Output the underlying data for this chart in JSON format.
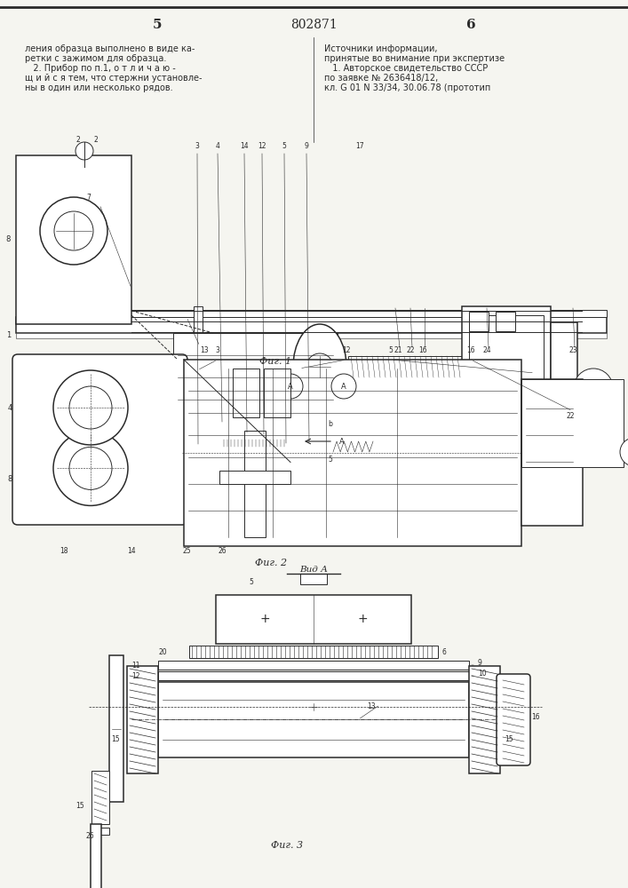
{
  "page_width": 7.07,
  "page_height": 10.0,
  "dpi": 100,
  "bg_color": "#f5f5f0",
  "line_color": "#2a2a2a",
  "header": {
    "left_num": "5",
    "center_num": "802871",
    "right_num": "6"
  },
  "left_text_lines": [
    "ления образца выполнено в виде ка-",
    "ретки с зажимом для образца.",
    "   2. Прибор по п.1, о т л и ч а ю -",
    "щ и й с я тем, что стержни установле-",
    "ны в один или несколько рядов."
  ],
  "right_text_lines": [
    "Источники информации,",
    "принятые во внимание при экспертизе",
    "   1. Авторское свидетельство СССР",
    "по заявке № 2636418/12,",
    "кл. G 01 N 33/34, 30.06.78 (прототип"
  ],
  "fig1_caption": "Фиг. 1",
  "fig2_caption": "Фиг. 2",
  "fig3_caption": "Фиг. 3",
  "vid_a": "Вид А"
}
